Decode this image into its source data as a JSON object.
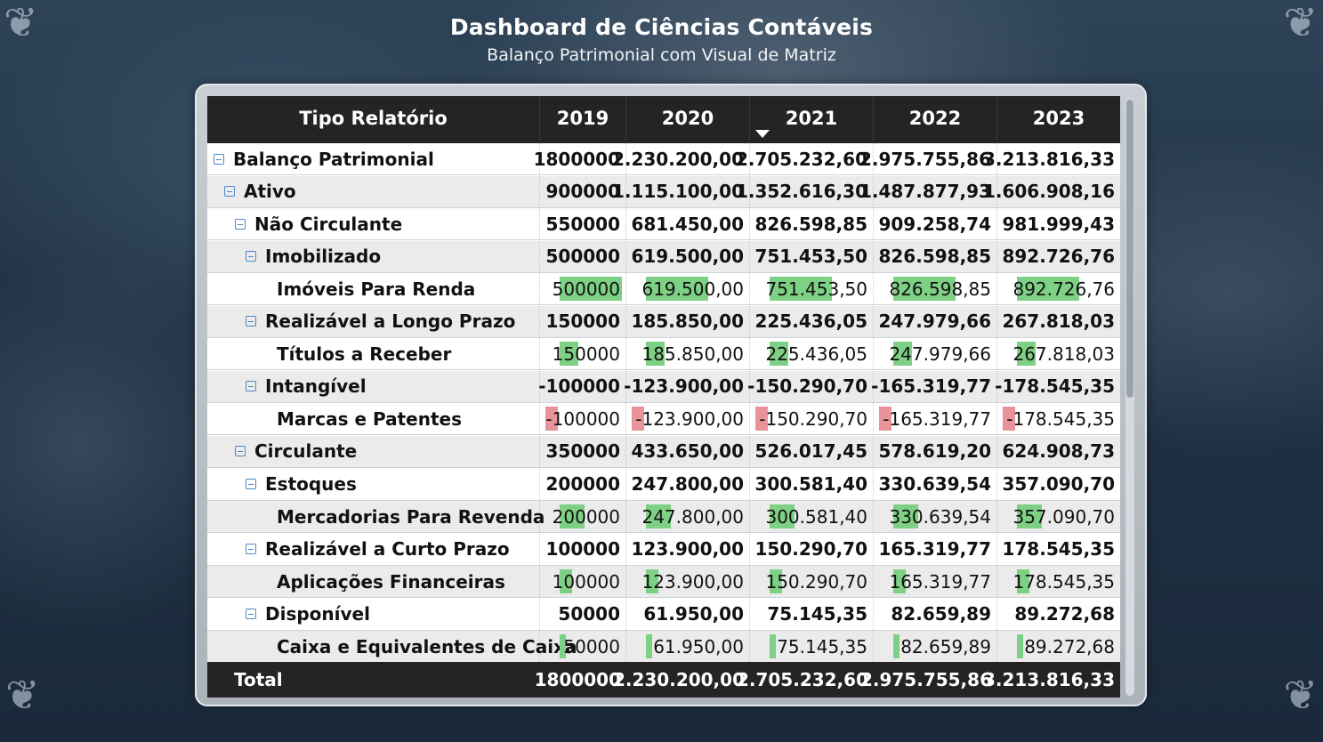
{
  "header": {
    "title": "Dashboard de Ciências Contáveis",
    "subtitle": "Balanço Patrimonial com Visual de Matriz"
  },
  "matrix": {
    "row_header": "Tipo Relatório",
    "columns": [
      "2019",
      "2020",
      "2021",
      "2022",
      "2023"
    ],
    "sorted_column": "2021",
    "rows": [
      {
        "label": "Balanço Patrimonial",
        "level": 0,
        "expander": true,
        "leaf": false,
        "values": [
          "1800000",
          "2.230.200,00",
          "2.705.232,60",
          "2.975.755,86",
          "3.213.816,33"
        ]
      },
      {
        "label": "Ativo",
        "level": 1,
        "expander": true,
        "leaf": false,
        "values": [
          "900000",
          "1.115.100,00",
          "1.352.616,30",
          "1.487.877,93",
          "1.606.908,16"
        ]
      },
      {
        "label": "Não Circulante",
        "level": 2,
        "expander": true,
        "leaf": false,
        "values": [
          "550000",
          "681.450,00",
          "826.598,85",
          "909.258,74",
          "981.999,43"
        ]
      },
      {
        "label": "Imobilizado",
        "level": 3,
        "expander": true,
        "leaf": false,
        "values": [
          "500000",
          "619.500,00",
          "751.453,50",
          "826.598,85",
          "892.726,76"
        ]
      },
      {
        "label": "Imóveis Para Renda",
        "level": 4,
        "expander": false,
        "leaf": true,
        "values": [
          "500000",
          "619.500,00",
          "751.453,50",
          "826.598,85",
          "892.726,76"
        ],
        "bar_fraction": [
          1.0,
          1.0,
          1.0,
          1.0,
          1.0
        ],
        "negative": false
      },
      {
        "label": "Realizável a Longo Prazo",
        "level": 3,
        "expander": true,
        "leaf": false,
        "values": [
          "150000",
          "185.850,00",
          "225.436,05",
          "247.979,66",
          "267.818,03"
        ]
      },
      {
        "label": "Títulos a Receber",
        "level": 4,
        "expander": false,
        "leaf": true,
        "values": [
          "150000",
          "185.850,00",
          "225.436,05",
          "247.979,66",
          "267.818,03"
        ],
        "bar_fraction": [
          0.3,
          0.3,
          0.3,
          0.3,
          0.3
        ],
        "negative": false
      },
      {
        "label": "Intangível",
        "level": 3,
        "expander": true,
        "leaf": false,
        "values": [
          "-100000",
          "-123.900,00",
          "-150.290,70",
          "-165.319,77",
          "-178.545,35"
        ]
      },
      {
        "label": "Marcas e Patentes",
        "level": 4,
        "expander": false,
        "leaf": true,
        "values": [
          "-100000",
          "-123.900,00",
          "-150.290,70",
          "-165.319,77",
          "-178.545,35"
        ],
        "bar_fraction": [
          0.2,
          0.2,
          0.2,
          0.2,
          0.2
        ],
        "negative": true
      },
      {
        "label": "Circulante",
        "level": 2,
        "expander": true,
        "leaf": false,
        "values": [
          "350000",
          "433.650,00",
          "526.017,45",
          "578.619,20",
          "624.908,73"
        ]
      },
      {
        "label": "Estoques",
        "level": 3,
        "expander": true,
        "leaf": false,
        "values": [
          "200000",
          "247.800,00",
          "300.581,40",
          "330.639,54",
          "357.090,70"
        ]
      },
      {
        "label": "Mercadorias Para Revenda",
        "level": 4,
        "expander": false,
        "leaf": true,
        "values": [
          "200000",
          "247.800,00",
          "300.581,40",
          "330.639,54",
          "357.090,70"
        ],
        "bar_fraction": [
          0.4,
          0.4,
          0.4,
          0.4,
          0.4
        ],
        "negative": false
      },
      {
        "label": "Realizável a Curto Prazo",
        "level": 3,
        "expander": true,
        "leaf": false,
        "values": [
          "100000",
          "123.900,00",
          "150.290,70",
          "165.319,77",
          "178.545,35"
        ]
      },
      {
        "label": "Aplicações Financeiras",
        "level": 4,
        "expander": false,
        "leaf": true,
        "values": [
          "100000",
          "123.900,00",
          "150.290,70",
          "165.319,77",
          "178.545,35"
        ],
        "bar_fraction": [
          0.2,
          0.2,
          0.2,
          0.2,
          0.2
        ],
        "negative": false
      },
      {
        "label": "Disponível",
        "level": 3,
        "expander": true,
        "leaf": false,
        "values": [
          "50000",
          "61.950,00",
          "75.145,35",
          "82.659,89",
          "89.272,68"
        ]
      },
      {
        "label": "Caixa e Equivalentes de Caixa",
        "level": 4,
        "expander": false,
        "leaf": true,
        "values": [
          "50000",
          "61.950,00",
          "75.145,35",
          "82.659,89",
          "89.272,68"
        ],
        "bar_fraction": [
          0.1,
          0.1,
          0.1,
          0.1,
          0.1
        ],
        "negative": false
      }
    ],
    "total": {
      "label": "Total",
      "values": [
        "1800000",
        "2.230.200,00",
        "2.705.232,60",
        "2.975.755,86",
        "3.213.816,33"
      ]
    }
  },
  "colors": {
    "positive_bar": "#7ed084",
    "negative_bar": "#e8939a",
    "header_bg": "#252323",
    "expander": "#4f86c6"
  }
}
